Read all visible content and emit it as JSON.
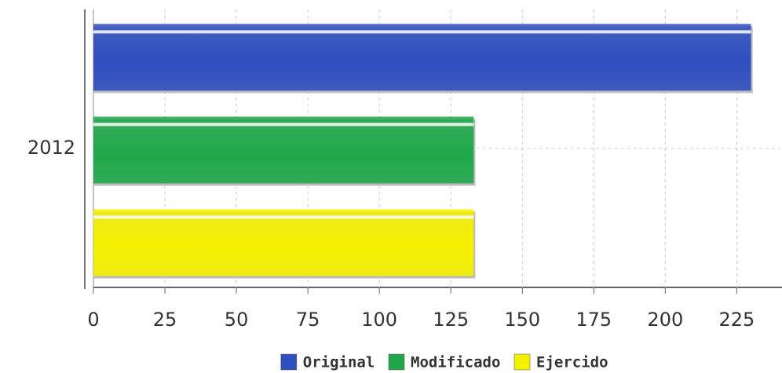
{
  "chart_data": {
    "type": "bar",
    "orientation": "horizontal",
    "categories": [
      "2012"
    ],
    "series": [
      {
        "name": "Original",
        "color": "#2f4fbf",
        "values": [
          230
        ]
      },
      {
        "name": "Modificado",
        "color": "#1fa84a",
        "values": [
          133
        ]
      },
      {
        "name": "Ejercido",
        "color": "#f5f000",
        "values": [
          133
        ]
      }
    ],
    "xlim": [
      0,
      240
    ],
    "xticks": [
      0,
      25,
      50,
      75,
      100,
      125,
      150,
      175,
      200,
      225
    ],
    "grid": true,
    "legend": "bottom"
  }
}
